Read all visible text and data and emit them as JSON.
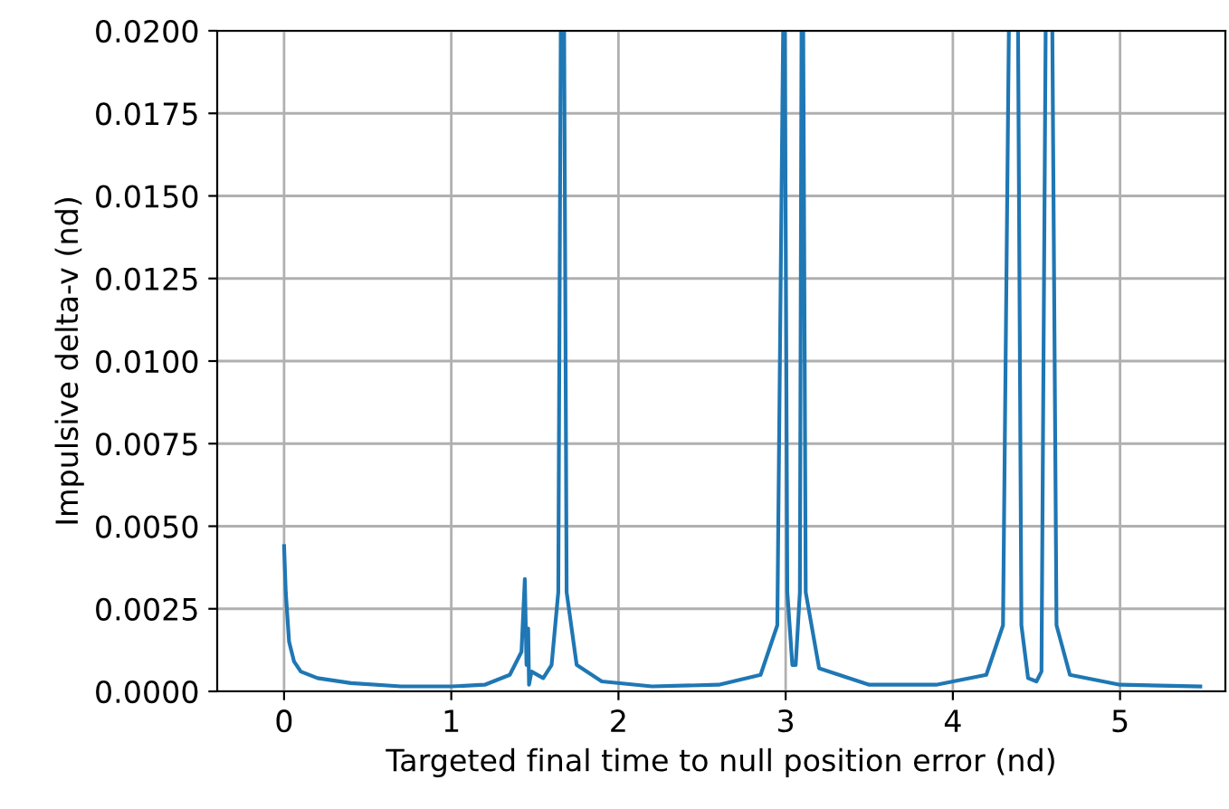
{
  "chart_data": {
    "type": "line",
    "xlabel": "Targeted final time to null position error (nd)",
    "ylabel": "Impulsive delta-v (nd)",
    "x": [
      0,
      0.01,
      0.03,
      0.06,
      0.1,
      0.2,
      0.4,
      0.7,
      1.0,
      1.2,
      1.35,
      1.42,
      1.44,
      1.45,
      1.46,
      1.465,
      1.48,
      1.55,
      1.6,
      1.64,
      1.655,
      1.665,
      1.675,
      1.69,
      1.75,
      1.9,
      2.2,
      2.6,
      2.85,
      2.95,
      2.985,
      2.99,
      2.995,
      3.01,
      3.04,
      3.06,
      3.085,
      3.095,
      3.1,
      3.105,
      3.12,
      3.2,
      3.5,
      3.9,
      4.2,
      4.3,
      4.335,
      4.36,
      4.39,
      4.41,
      4.45,
      4.5,
      4.53,
      4.555,
      4.575,
      4.595,
      4.62,
      4.7,
      5.0,
      5.48
    ],
    "series": [
      {
        "color": "#1f77b4",
        "values": [
          0.0044,
          0.003,
          0.0015,
          0.0009,
          0.0006,
          0.0004,
          0.00025,
          0.00015,
          0.00015,
          0.0002,
          0.0005,
          0.0012,
          0.0034,
          0.0008,
          0.0019,
          0.0002,
          0.0006,
          0.0004,
          0.0008,
          0.003,
          0.02,
          null,
          0.02,
          0.003,
          0.0008,
          0.0003,
          0.00015,
          0.0002,
          0.0005,
          0.002,
          0.02,
          null,
          0.02,
          0.003,
          0.0008,
          0.0008,
          0.003,
          0.02,
          null,
          0.02,
          0.003,
          0.0007,
          0.0002,
          0.0002,
          0.0005,
          0.002,
          0.02,
          null,
          0.02,
          0.002,
          0.0004,
          0.0003,
          0.0006,
          0.02,
          null,
          0.02,
          0.002,
          0.0005,
          0.0002,
          0.00015
        ]
      }
    ],
    "xlim": [
      -0.4,
      5.63
    ],
    "ylim": [
      0,
      0.02
    ],
    "xticks": [
      0,
      1,
      2,
      3,
      4,
      5
    ],
    "yticks": [
      {
        "value": 0,
        "label": "0.0000"
      },
      {
        "value": 0.0025,
        "label": "0.0025"
      },
      {
        "value": 0.005,
        "label": "0.0050"
      },
      {
        "value": 0.0075,
        "label": "0.0075"
      },
      {
        "value": 0.01,
        "label": "0.0100"
      },
      {
        "value": 0.0125,
        "label": "0.0125"
      },
      {
        "value": 0.015,
        "label": "0.0150"
      },
      {
        "value": 0.0175,
        "label": "0.0175"
      },
      {
        "value": 0.02,
        "label": "0.0200"
      }
    ],
    "grid": true
  }
}
